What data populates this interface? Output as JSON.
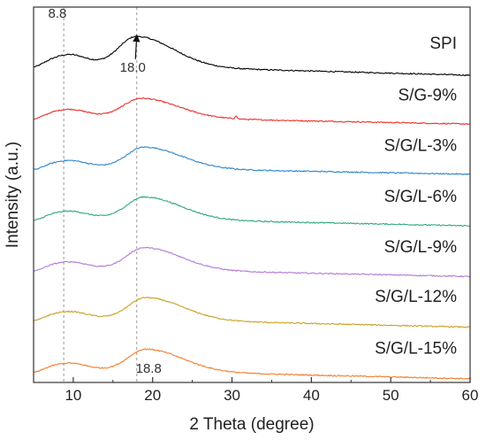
{
  "chart_data": {
    "type": "line",
    "title": "",
    "xlabel": "2 Theta (degree)",
    "ylabel": "Intensity (a.u.)",
    "xlim": [
      5,
      60
    ],
    "xticks": [
      10,
      20,
      30,
      40,
      50,
      60
    ],
    "y_tick_labels": false,
    "grid": false,
    "legend": "none (series labeled inline at right above each curve)",
    "series": [
      {
        "name": "SPI",
        "color": "#000000",
        "baseline": 6.7,
        "peak_x": 18.0,
        "peak_height": 0.65,
        "shoulder_height": 0.22,
        "tail_x60": -0.23,
        "bump_x": null
      },
      {
        "name": "S/G-9%",
        "color": "#e8322c",
        "baseline": 5.58,
        "peak_x": 18.6,
        "peak_height": 0.42,
        "shoulder_height": 0.15,
        "tail_x60": -0.17,
        "bump_x": 30.5
      },
      {
        "name": "S/G/L-3%",
        "color": "#2f86c9",
        "baseline": 4.48,
        "peak_x": 19.0,
        "peak_height": 0.46,
        "shoulder_height": 0.14,
        "tail_x60": -0.16,
        "bump_x": null
      },
      {
        "name": "S/G/L-6%",
        "color": "#2ea97a",
        "baseline": 3.38,
        "peak_x": 19.0,
        "peak_height": 0.48,
        "shoulder_height": 0.14,
        "tail_x60": -0.18,
        "bump_x": null
      },
      {
        "name": "S/G/L-9%",
        "color": "#b37bd6",
        "baseline": 2.28,
        "peak_x": 19.0,
        "peak_height": 0.48,
        "shoulder_height": 0.14,
        "tail_x60": -0.18,
        "bump_x": null
      },
      {
        "name": "S/G/L-12%",
        "color": "#c9a227",
        "baseline": 1.2,
        "peak_x": 19.2,
        "peak_height": 0.48,
        "shoulder_height": 0.14,
        "tail_x60": -0.2,
        "bump_x": null
      },
      {
        "name": "S/G/L-15%",
        "color": "#f27d2c",
        "baseline": 0.08,
        "peak_x": 19.2,
        "peak_height": 0.48,
        "shoulder_height": 0.14,
        "tail_x60": -0.2,
        "bump_x": null
      }
    ],
    "reference_lines": [
      {
        "x": 8.8,
        "style": "dashed",
        "color": "#999999"
      },
      {
        "x": 18.0,
        "style": "dashed",
        "color": "#999999"
      }
    ],
    "annotations": [
      {
        "text": "8.8",
        "x": 8.0,
        "y": 7.72
      },
      {
        "text": "18.0",
        "x": 17.5,
        "y": 6.55,
        "arrow_to": [
          18.0,
          7.34
        ]
      },
      {
        "text": "18.8",
        "x": 19.5,
        "y": 0.01
      }
    ],
    "y_range": [
      -0.2,
      7.95
    ]
  }
}
